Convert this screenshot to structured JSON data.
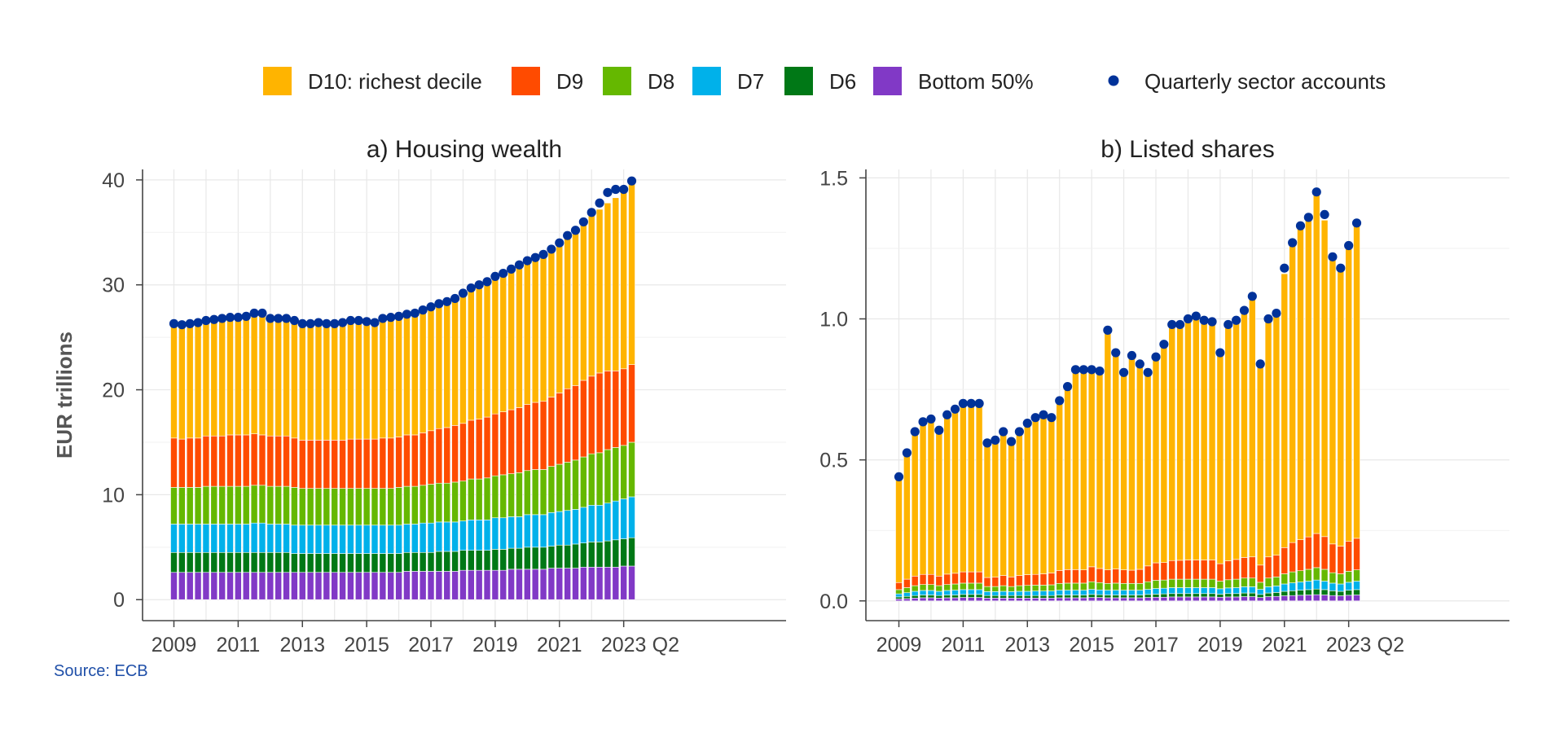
{
  "legend": {
    "items": [
      {
        "label": "D10: richest decile",
        "color": "#FFB400"
      },
      {
        "label": "D9",
        "color": "#FF4B00"
      },
      {
        "label": "D8",
        "color": "#65B800"
      },
      {
        "label": "D7",
        "color": "#00B1EA"
      },
      {
        "label": "D6",
        "color": "#007816"
      },
      {
        "label": "Bottom 50%",
        "color": "#8139C6"
      }
    ],
    "dot_label": "Quarterly sector accounts",
    "dot_color": "#003299"
  },
  "source": "Source: ECB",
  "chart_data": [
    {
      "type": "bar",
      "stacked": true,
      "title": "a) Housing wealth",
      "ylabel": "EUR trillions",
      "xlabel": "",
      "ylim": [
        -2,
        41
      ],
      "yticks": [
        "0",
        "10",
        "20",
        "30",
        "40"
      ],
      "xticks": [
        "2009",
        "2011",
        "2013",
        "2015",
        "2017",
        "2019",
        "2021",
        "2023"
      ],
      "x_end_label": "Q2",
      "periods": [
        "2009Q1",
        "2009Q2",
        "2009Q3",
        "2009Q4",
        "2010Q1",
        "2010Q2",
        "2010Q3",
        "2010Q4",
        "2011Q1",
        "2011Q2",
        "2011Q3",
        "2011Q4",
        "2012Q1",
        "2012Q2",
        "2012Q3",
        "2012Q4",
        "2013Q1",
        "2013Q2",
        "2013Q3",
        "2013Q4",
        "2014Q1",
        "2014Q2",
        "2014Q3",
        "2014Q4",
        "2015Q1",
        "2015Q2",
        "2015Q3",
        "2015Q4",
        "2016Q1",
        "2016Q2",
        "2016Q3",
        "2016Q4",
        "2017Q1",
        "2017Q2",
        "2017Q3",
        "2017Q4",
        "2018Q1",
        "2018Q2",
        "2018Q3",
        "2018Q4",
        "2019Q1",
        "2019Q2",
        "2019Q3",
        "2019Q4",
        "2020Q1",
        "2020Q2",
        "2020Q3",
        "2020Q4",
        "2021Q1",
        "2021Q2",
        "2021Q3",
        "2021Q4",
        "2022Q1",
        "2022Q2",
        "2022Q3",
        "2022Q4",
        "2023Q1",
        "2023Q2"
      ],
      "series": [
        {
          "name": "Bottom 50%",
          "values": [
            2.6,
            2.6,
            2.6,
            2.6,
            2.6,
            2.6,
            2.6,
            2.6,
            2.6,
            2.6,
            2.6,
            2.6,
            2.6,
            2.6,
            2.6,
            2.6,
            2.6,
            2.6,
            2.6,
            2.6,
            2.6,
            2.6,
            2.6,
            2.6,
            2.6,
            2.6,
            2.6,
            2.6,
            2.6,
            2.7,
            2.7,
            2.7,
            2.7,
            2.7,
            2.7,
            2.7,
            2.8,
            2.8,
            2.8,
            2.8,
            2.8,
            2.8,
            2.9,
            2.9,
            2.9,
            2.9,
            2.9,
            3.0,
            3.0,
            3.0,
            3.0,
            3.1,
            3.1,
            3.1,
            3.1,
            3.1,
            3.2,
            3.2
          ]
        },
        {
          "name": "D6",
          "values": [
            1.9,
            1.9,
            1.9,
            1.9,
            1.9,
            1.9,
            1.9,
            1.9,
            1.9,
            1.9,
            1.9,
            1.9,
            1.9,
            1.9,
            1.9,
            1.8,
            1.8,
            1.8,
            1.8,
            1.8,
            1.8,
            1.8,
            1.8,
            1.8,
            1.8,
            1.8,
            1.8,
            1.8,
            1.8,
            1.8,
            1.8,
            1.8,
            1.8,
            1.9,
            1.9,
            1.9,
            1.9,
            1.9,
            1.9,
            1.9,
            2.0,
            2.0,
            2.0,
            2.0,
            2.1,
            2.1,
            2.1,
            2.1,
            2.2,
            2.2,
            2.3,
            2.3,
            2.4,
            2.4,
            2.5,
            2.6,
            2.6,
            2.7
          ]
        },
        {
          "name": "D7",
          "values": [
            2.7,
            2.7,
            2.7,
            2.7,
            2.7,
            2.7,
            2.7,
            2.7,
            2.7,
            2.7,
            2.8,
            2.8,
            2.7,
            2.7,
            2.7,
            2.7,
            2.7,
            2.7,
            2.7,
            2.7,
            2.7,
            2.7,
            2.7,
            2.7,
            2.7,
            2.7,
            2.7,
            2.7,
            2.7,
            2.7,
            2.7,
            2.8,
            2.8,
            2.8,
            2.8,
            2.8,
            2.8,
            2.9,
            2.9,
            2.9,
            3.0,
            3.0,
            3.0,
            3.0,
            3.1,
            3.1,
            3.1,
            3.2,
            3.2,
            3.3,
            3.3,
            3.4,
            3.5,
            3.5,
            3.6,
            3.7,
            3.8,
            3.9
          ]
        },
        {
          "name": "D8",
          "values": [
            3.5,
            3.5,
            3.5,
            3.5,
            3.6,
            3.6,
            3.6,
            3.6,
            3.6,
            3.6,
            3.6,
            3.6,
            3.6,
            3.6,
            3.6,
            3.6,
            3.5,
            3.5,
            3.5,
            3.5,
            3.5,
            3.5,
            3.5,
            3.5,
            3.5,
            3.5,
            3.5,
            3.5,
            3.6,
            3.6,
            3.6,
            3.6,
            3.7,
            3.7,
            3.7,
            3.8,
            3.8,
            3.9,
            3.9,
            4.0,
            4.0,
            4.1,
            4.1,
            4.2,
            4.2,
            4.3,
            4.3,
            4.4,
            4.5,
            4.6,
            4.7,
            4.8,
            4.9,
            5.0,
            5.1,
            5.1,
            5.1,
            5.2
          ]
        },
        {
          "name": "D9",
          "values": [
            4.7,
            4.6,
            4.7,
            4.7,
            4.8,
            4.8,
            4.8,
            4.9,
            4.9,
            4.9,
            4.9,
            4.8,
            4.8,
            4.8,
            4.8,
            4.7,
            4.6,
            4.6,
            4.6,
            4.6,
            4.6,
            4.6,
            4.7,
            4.7,
            4.7,
            4.7,
            4.8,
            4.8,
            4.8,
            4.9,
            4.9,
            5.0,
            5.1,
            5.2,
            5.3,
            5.4,
            5.5,
            5.6,
            5.7,
            5.8,
            5.9,
            6.0,
            6.1,
            6.2,
            6.3,
            6.4,
            6.5,
            6.6,
            6.8,
            7.0,
            7.1,
            7.3,
            7.4,
            7.6,
            7.5,
            7.3,
            7.3,
            7.4
          ]
        },
        {
          "name": "D10: richest decile",
          "values": [
            10.9,
            10.9,
            10.9,
            11.0,
            11.0,
            11.1,
            11.2,
            11.2,
            11.2,
            11.3,
            11.4,
            11.4,
            11.2,
            11.2,
            11.2,
            11.2,
            11.1,
            11.1,
            11.2,
            11.1,
            11.1,
            11.2,
            11.3,
            11.3,
            11.2,
            11.1,
            11.4,
            11.5,
            11.5,
            11.5,
            11.6,
            11.7,
            11.8,
            11.9,
            12.0,
            12.1,
            12.4,
            12.6,
            12.8,
            12.9,
            13.1,
            13.2,
            13.4,
            13.6,
            13.7,
            13.8,
            14.0,
            14.1,
            14.3,
            14.5,
            14.8,
            14.9,
            15.3,
            15.6,
            16.0,
            16.5,
            16.9,
            17.5
          ]
        }
      ],
      "sector_accounts": [
        26.3,
        26.2,
        26.3,
        26.4,
        26.6,
        26.7,
        26.8,
        26.9,
        26.9,
        27.0,
        27.3,
        27.3,
        26.8,
        26.8,
        26.8,
        26.6,
        26.3,
        26.3,
        26.4,
        26.3,
        26.3,
        26.4,
        26.6,
        26.6,
        26.5,
        26.4,
        26.8,
        26.9,
        27.0,
        27.2,
        27.3,
        27.6,
        27.9,
        28.2,
        28.4,
        28.7,
        29.2,
        29.7,
        30.0,
        30.3,
        30.8,
        31.1,
        31.5,
        31.9,
        32.3,
        32.6,
        32.9,
        33.4,
        34.0,
        34.7,
        35.2,
        36.0,
        36.9,
        37.8,
        38.8,
        39.1,
        39.1,
        39.9
      ]
    },
    {
      "type": "bar",
      "stacked": true,
      "title": "b) Listed shares",
      "ylabel": "",
      "xlabel": "",
      "ylim": [
        -0.07,
        1.53
      ],
      "yticks": [
        "0.0",
        "0.5",
        "1.0",
        "1.5"
      ],
      "xticks": [
        "2009",
        "2011",
        "2013",
        "2015",
        "2017",
        "2019",
        "2021",
        "2023"
      ],
      "x_end_label": "Q2",
      "periods": [
        "2009Q1",
        "2009Q2",
        "2009Q3",
        "2009Q4",
        "2010Q1",
        "2010Q2",
        "2010Q3",
        "2010Q4",
        "2011Q1",
        "2011Q2",
        "2011Q3",
        "2011Q4",
        "2012Q1",
        "2012Q2",
        "2012Q3",
        "2012Q4",
        "2013Q1",
        "2013Q2",
        "2013Q3",
        "2013Q4",
        "2014Q1",
        "2014Q2",
        "2014Q3",
        "2014Q4",
        "2015Q1",
        "2015Q2",
        "2015Q3",
        "2015Q4",
        "2016Q1",
        "2016Q2",
        "2016Q3",
        "2016Q4",
        "2017Q1",
        "2017Q2",
        "2017Q3",
        "2017Q4",
        "2018Q1",
        "2018Q2",
        "2018Q3",
        "2018Q4",
        "2019Q1",
        "2019Q2",
        "2019Q3",
        "2019Q4",
        "2020Q1",
        "2020Q2",
        "2020Q3",
        "2020Q4",
        "2021Q1",
        "2021Q2",
        "2021Q3",
        "2021Q4",
        "2022Q1",
        "2022Q2",
        "2022Q3",
        "2022Q4",
        "2023Q1",
        "2023Q2"
      ],
      "series": [
        {
          "name": "Bottom 50%",
          "values": [
            0.007,
            0.008,
            0.01,
            0.011,
            0.011,
            0.01,
            0.011,
            0.011,
            0.012,
            0.012,
            0.012,
            0.01,
            0.01,
            0.01,
            0.01,
            0.01,
            0.01,
            0.01,
            0.01,
            0.01,
            0.011,
            0.011,
            0.011,
            0.011,
            0.012,
            0.012,
            0.011,
            0.011,
            0.011,
            0.011,
            0.011,
            0.012,
            0.013,
            0.013,
            0.014,
            0.014,
            0.014,
            0.014,
            0.014,
            0.014,
            0.013,
            0.014,
            0.014,
            0.015,
            0.015,
            0.012,
            0.015,
            0.016,
            0.018,
            0.019,
            0.02,
            0.021,
            0.022,
            0.021,
            0.019,
            0.018,
            0.02,
            0.021
          ]
        },
        {
          "name": "D6",
          "values": [
            0.007,
            0.008,
            0.009,
            0.01,
            0.01,
            0.009,
            0.01,
            0.01,
            0.011,
            0.011,
            0.011,
            0.009,
            0.009,
            0.009,
            0.009,
            0.009,
            0.009,
            0.009,
            0.009,
            0.009,
            0.01,
            0.01,
            0.01,
            0.01,
            0.011,
            0.01,
            0.01,
            0.01,
            0.01,
            0.01,
            0.01,
            0.011,
            0.011,
            0.012,
            0.012,
            0.012,
            0.012,
            0.012,
            0.012,
            0.012,
            0.011,
            0.012,
            0.012,
            0.013,
            0.013,
            0.011,
            0.013,
            0.014,
            0.016,
            0.017,
            0.018,
            0.019,
            0.02,
            0.019,
            0.017,
            0.016,
            0.018,
            0.019
          ]
        },
        {
          "name": "D7",
          "values": [
            0.011,
            0.013,
            0.015,
            0.016,
            0.016,
            0.015,
            0.016,
            0.017,
            0.017,
            0.017,
            0.017,
            0.014,
            0.014,
            0.015,
            0.014,
            0.015,
            0.015,
            0.016,
            0.016,
            0.016,
            0.017,
            0.017,
            0.017,
            0.017,
            0.018,
            0.017,
            0.017,
            0.017,
            0.017,
            0.017,
            0.017,
            0.018,
            0.02,
            0.02,
            0.021,
            0.021,
            0.021,
            0.021,
            0.021,
            0.021,
            0.019,
            0.02,
            0.021,
            0.022,
            0.022,
            0.018,
            0.022,
            0.023,
            0.026,
            0.028,
            0.029,
            0.03,
            0.032,
            0.03,
            0.027,
            0.026,
            0.028,
            0.03
          ]
        },
        {
          "name": "D8",
          "values": [
            0.015,
            0.018,
            0.02,
            0.021,
            0.021,
            0.02,
            0.021,
            0.022,
            0.023,
            0.023,
            0.023,
            0.018,
            0.018,
            0.02,
            0.018,
            0.02,
            0.021,
            0.021,
            0.021,
            0.022,
            0.024,
            0.025,
            0.025,
            0.025,
            0.027,
            0.026,
            0.024,
            0.025,
            0.024,
            0.024,
            0.024,
            0.027,
            0.029,
            0.029,
            0.03,
            0.03,
            0.03,
            0.03,
            0.03,
            0.03,
            0.027,
            0.029,
            0.03,
            0.031,
            0.031,
            0.025,
            0.031,
            0.032,
            0.036,
            0.039,
            0.04,
            0.042,
            0.044,
            0.042,
            0.037,
            0.036,
            0.039,
            0.04
          ]
        },
        {
          "name": "D9",
          "values": [
            0.025,
            0.03,
            0.034,
            0.036,
            0.036,
            0.034,
            0.037,
            0.038,
            0.04,
            0.04,
            0.04,
            0.032,
            0.033,
            0.036,
            0.034,
            0.036,
            0.038,
            0.038,
            0.04,
            0.042,
            0.046,
            0.048,
            0.048,
            0.047,
            0.053,
            0.05,
            0.048,
            0.05,
            0.048,
            0.047,
            0.05,
            0.056,
            0.062,
            0.062,
            0.066,
            0.067,
            0.068,
            0.068,
            0.068,
            0.068,
            0.062,
            0.067,
            0.07,
            0.073,
            0.075,
            0.061,
            0.075,
            0.077,
            0.093,
            0.104,
            0.11,
            0.115,
            0.121,
            0.116,
            0.102,
            0.098,
            0.106,
            0.112
          ]
        },
        {
          "name": "D10: richest decile",
          "values": [
            0.375,
            0.448,
            0.512,
            0.546,
            0.556,
            0.517,
            0.565,
            0.583,
            0.607,
            0.607,
            0.607,
            0.477,
            0.49,
            0.518,
            0.489,
            0.519,
            0.537,
            0.556,
            0.564,
            0.553,
            0.602,
            0.649,
            0.709,
            0.71,
            0.699,
            0.7,
            0.84,
            0.767,
            0.7,
            0.761,
            0.728,
            0.691,
            0.73,
            0.774,
            0.828,
            0.828,
            0.855,
            0.865,
            0.852,
            0.845,
            0.756,
            0.838,
            0.848,
            0.876,
            0.924,
            0.713,
            0.844,
            0.858,
            0.971,
            1.063,
            1.113,
            1.133,
            1.211,
            1.122,
            1.018,
            0.986,
            1.049,
            1.118
          ]
        }
      ],
      "sector_accounts": [
        0.44,
        0.525,
        0.6,
        0.635,
        0.645,
        0.605,
        0.66,
        0.68,
        0.7,
        0.7,
        0.7,
        0.56,
        0.57,
        0.6,
        0.565,
        0.6,
        0.63,
        0.65,
        0.66,
        0.65,
        0.71,
        0.76,
        0.82,
        0.82,
        0.82,
        0.815,
        0.96,
        0.88,
        0.81,
        0.87,
        0.84,
        0.81,
        0.865,
        0.91,
        0.98,
        0.98,
        1.0,
        1.01,
        0.995,
        0.99,
        0.88,
        0.98,
        0.995,
        1.03,
        1.08,
        0.84,
        1.0,
        1.02,
        1.18,
        1.27,
        1.33,
        1.36,
        1.45,
        1.37,
        1.22,
        1.18,
        1.26,
        1.34
      ]
    }
  ]
}
